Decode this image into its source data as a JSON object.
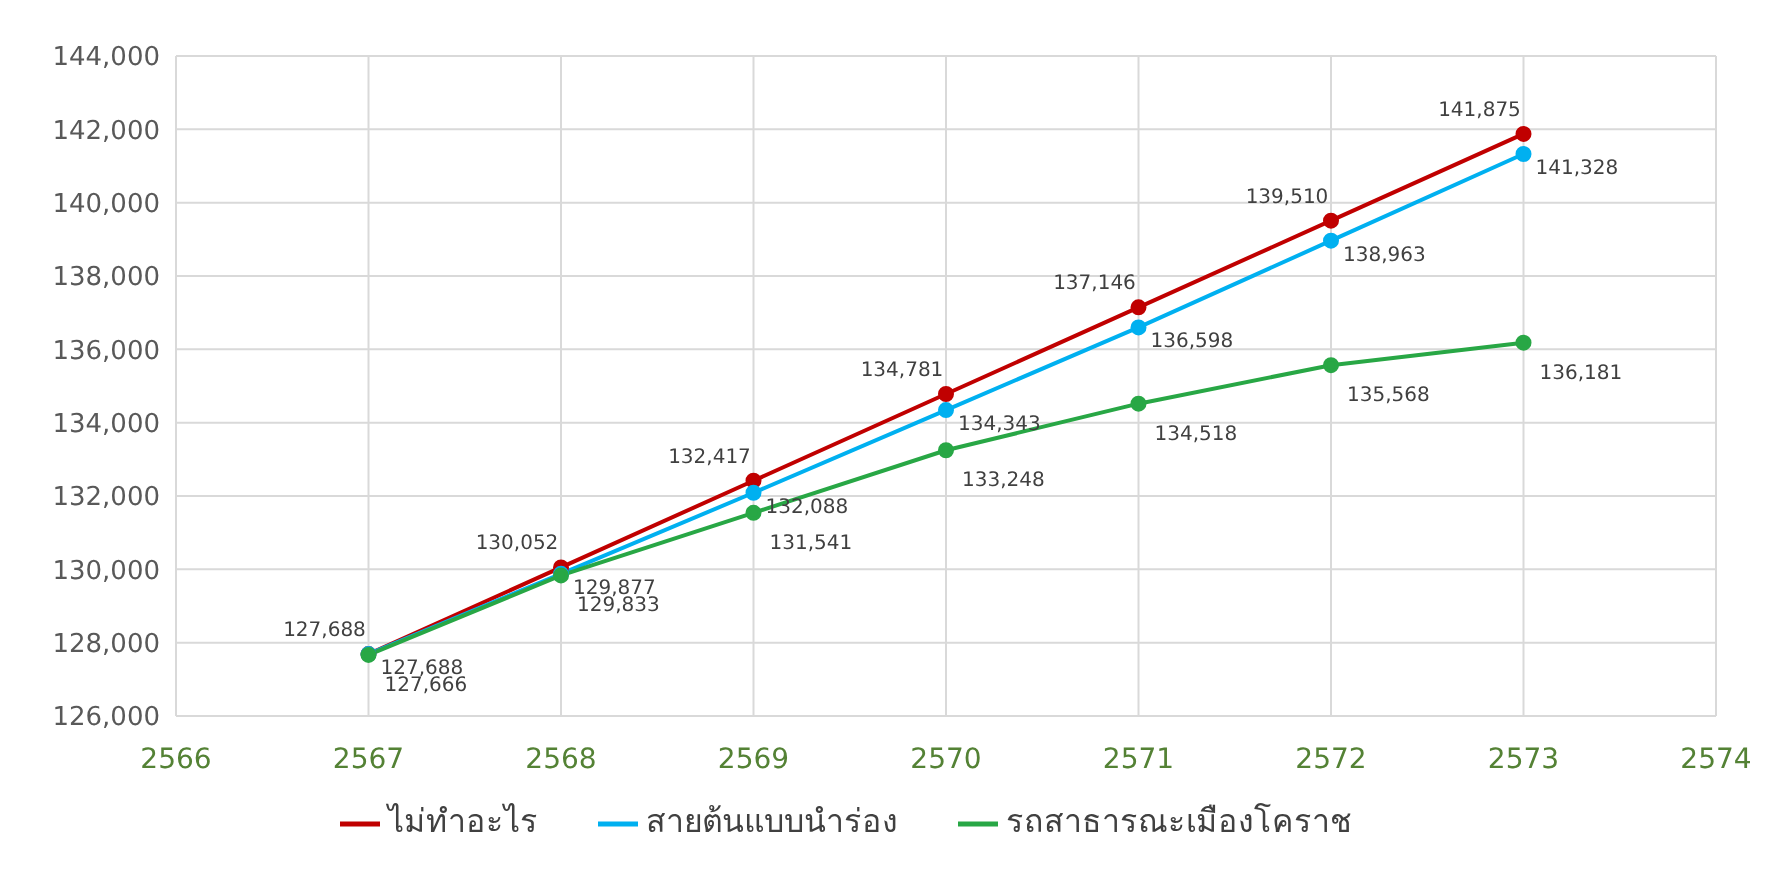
{
  "chart_data": {
    "type": "line",
    "x": [
      2567,
      2568,
      2569,
      2570,
      2571,
      2572,
      2573
    ],
    "series": [
      {
        "name": "ไม่ทำอะไร",
        "color": "#c00000",
        "values": [
          127688,
          130052,
          132417,
          134781,
          137146,
          139510,
          141875
        ],
        "value_labels": [
          "127,688",
          "130,052",
          "132,417",
          "134,781",
          "137,146",
          "139,510",
          "141,875"
        ]
      },
      {
        "name": "สายต้นแบบนำร่อง",
        "color": "#00b0f0",
        "values": [
          127688,
          129877,
          132088,
          134343,
          136598,
          138963,
          141328
        ],
        "value_labels": [
          "127,688",
          "129,877",
          "132,088",
          "134,343",
          "136,598",
          "138,963",
          "141,328"
        ]
      },
      {
        "name": "รถสาธารณะเมืองโคราช",
        "color": "#28a745",
        "values": [
          127666,
          129833,
          131541,
          133248,
          134518,
          135568,
          136181
        ],
        "value_labels": [
          "127,666",
          "129,833",
          "131,541",
          "133,248",
          "134,518",
          "135,568",
          "136,181"
        ]
      }
    ],
    "xlim": [
      2566,
      2574
    ],
    "xticks": [
      2566,
      2567,
      2568,
      2569,
      2570,
      2571,
      2572,
      2573,
      2574
    ],
    "ylim": [
      126000,
      144000
    ],
    "yticks": [
      {
        "value": 126000,
        "label": "126,000"
      },
      {
        "value": 128000,
        "label": "128,000"
      },
      {
        "value": 130000,
        "label": "130,000"
      },
      {
        "value": 132000,
        "label": "132,000"
      },
      {
        "value": 134000,
        "label": "134,000"
      },
      {
        "value": 136000,
        "label": "136,000"
      },
      {
        "value": 138000,
        "label": "138,000"
      },
      {
        "value": 140000,
        "label": "140,000"
      },
      {
        "value": 142000,
        "label": "142,000"
      },
      {
        "value": 144000,
        "label": "144,000"
      }
    ],
    "grid": true,
    "legend": "bottom",
    "marker": "circle",
    "line_style": "solid"
  }
}
